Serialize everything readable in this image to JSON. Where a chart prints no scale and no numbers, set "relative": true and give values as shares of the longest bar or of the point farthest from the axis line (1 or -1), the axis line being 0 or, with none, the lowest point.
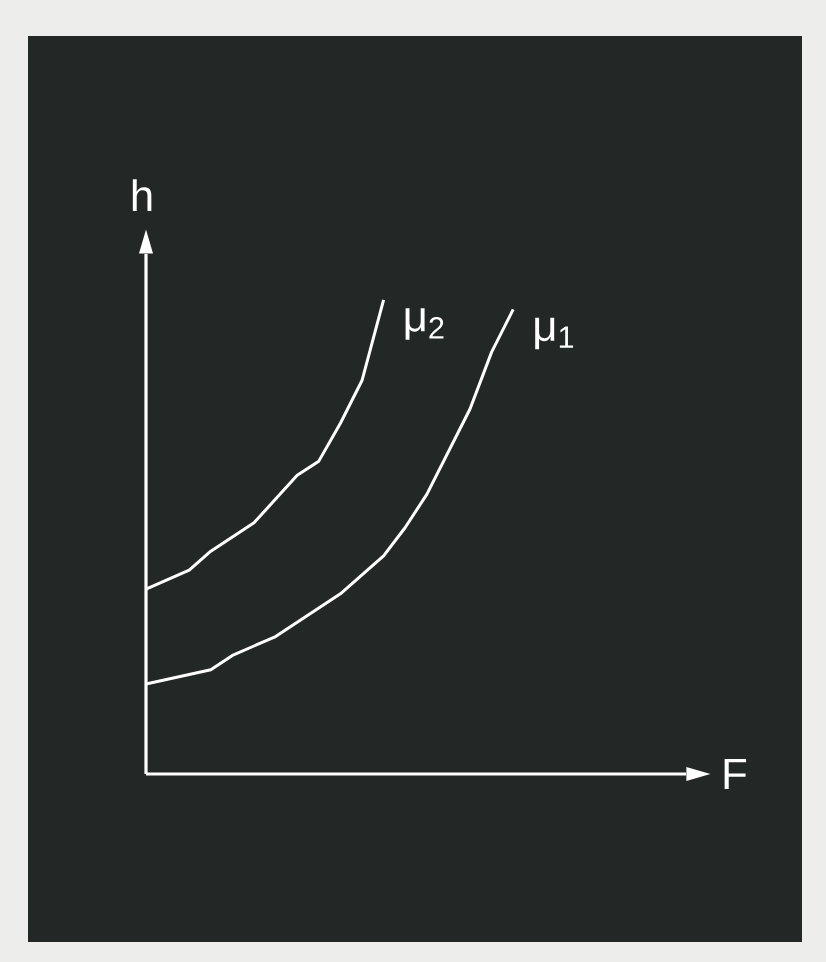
{
  "chart_data": {
    "type": "line",
    "relative": true,
    "xlabel": "F",
    "ylabel": "h",
    "marker": "none",
    "line_style": "solid",
    "categories": [
      null,
      null,
      null,
      null,
      null,
      null,
      null,
      null,
      null,
      null,
      null,
      null,
      null,
      null,
      null,
      null,
      null,
      null,
      null,
      null,
      null,
      null,
      null,
      null,
      null,
      null
    ],
    "series": [
      {
        "name": "μ$_{2}$",
        "color": "#ffffff",
        "values": [
          0.39,
          0.41,
          0.43,
          0.47,
          0.5,
          0.53,
          0.58,
          0.63,
          0.66,
          0.74,
          0.83,
          1.0,
          null,
          null,
          null,
          null,
          null,
          null,
          null,
          null,
          null,
          null,
          null,
          null,
          null,
          null
        ]
      },
      {
        "name": "μ$_{1}$",
        "color": "#ffffff",
        "values": [
          0.19,
          0.2,
          0.21,
          0.22,
          0.25,
          0.27,
          0.29,
          0.32,
          0.35,
          0.38,
          0.42,
          0.46,
          0.52,
          0.59,
          0.68,
          0.77,
          0.89,
          0.98,
          null,
          null,
          null,
          null,
          null,
          null,
          null,
          null
        ]
      }
    ]
  }
}
